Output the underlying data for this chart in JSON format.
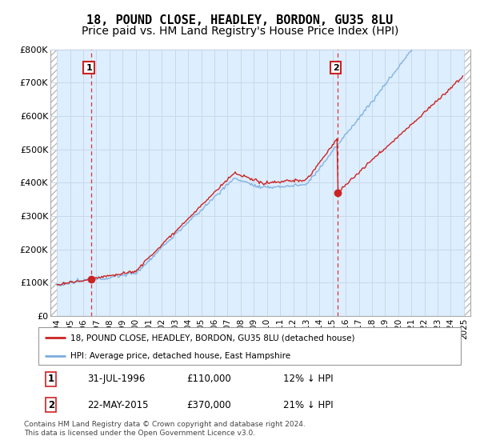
{
  "title": "18, POUND CLOSE, HEADLEY, BORDON, GU35 8LU",
  "subtitle": "Price paid vs. HM Land Registry's House Price Index (HPI)",
  "ylim": [
    0,
    800000
  ],
  "yticks": [
    0,
    100000,
    200000,
    300000,
    400000,
    500000,
    600000,
    700000,
    800000
  ],
  "ytick_labels": [
    "£0",
    "£100K",
    "£200K",
    "£300K",
    "£400K",
    "£500K",
    "£600K",
    "£700K",
    "£800K"
  ],
  "xlim_start": 1993.5,
  "xlim_end": 2025.5,
  "xticks": [
    1994,
    1995,
    1996,
    1997,
    1998,
    1999,
    2000,
    2001,
    2002,
    2003,
    2004,
    2005,
    2006,
    2007,
    2008,
    2009,
    2010,
    2011,
    2012,
    2013,
    2014,
    2015,
    2016,
    2017,
    2018,
    2019,
    2020,
    2021,
    2022,
    2023,
    2024,
    2025
  ],
  "hpi_color": "#7aaddc",
  "price_color": "#cc2222",
  "purchase1_year": 1996.58,
  "purchase1_price": 110000,
  "purchase2_year": 2015.39,
  "purchase2_price": 370000,
  "annotation1_label": "1",
  "annotation2_label": "2",
  "legend_line1": "18, POUND CLOSE, HEADLEY, BORDON, GU35 8LU (detached house)",
  "legend_line2": "HPI: Average price, detached house, East Hampshire",
  "table_row1": [
    "1",
    "31-JUL-1996",
    "£110,000",
    "12% ↓ HPI"
  ],
  "table_row2": [
    "2",
    "22-MAY-2015",
    "£370,000",
    "21% ↓ HPI"
  ],
  "footnote": "Contains HM Land Registry data © Crown copyright and database right 2024.\nThis data is licensed under the Open Government Licence v3.0.",
  "grid_color": "#c8d8e8",
  "bg_color": "#ddeeff",
  "title_fontsize": 11,
  "subtitle_fontsize": 10,
  "tick_fontsize": 8
}
